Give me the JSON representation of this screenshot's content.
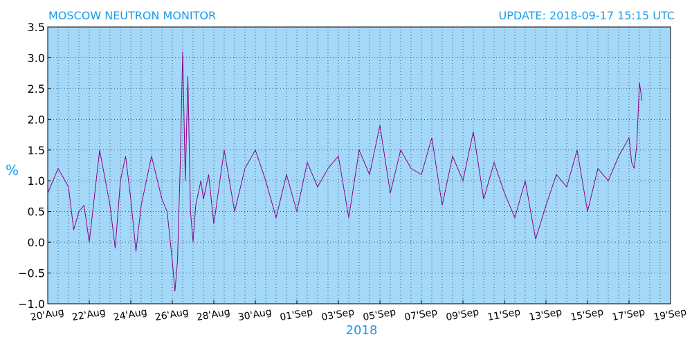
{
  "header": {
    "title": "MOSCOW NEUTRON MONITOR",
    "update": "UPDATE: 2018-09-17 15:15 UTC"
  },
  "colors": {
    "plot_background": "#a4d8f8",
    "line": "#8b008b",
    "accent_text": "#1a9be6"
  },
  "chart_data": {
    "type": "line",
    "title": "MOSCOW NEUTRON MONITOR",
    "xlabel": "2018",
    "ylabel": "%",
    "ylim": [
      -1.0,
      3.5
    ],
    "yticks": [
      -1.0,
      -0.5,
      0.0,
      0.5,
      1.0,
      1.5,
      2.0,
      2.5,
      3.0,
      3.5
    ],
    "ytick_labels": [
      "−1.0",
      "−0.5",
      "0.0",
      "0.5",
      "1.0",
      "1.5",
      "2.0",
      "2.5",
      "3.0",
      "3.5"
    ],
    "xlim": [
      "2018-08-20",
      "2018-09-19"
    ],
    "xtick_dates": [
      "2018-08-20",
      "2018-08-22",
      "2018-08-24",
      "2018-08-26",
      "2018-08-28",
      "2018-08-30",
      "2018-09-01",
      "2018-09-03",
      "2018-09-05",
      "2018-09-07",
      "2018-09-09",
      "2018-09-11",
      "2018-09-13",
      "2018-09-15",
      "2018-09-17",
      "2018-09-19"
    ],
    "xtick_labels": [
      "20'Aug",
      "22'Aug",
      "24'Aug",
      "26'Aug",
      "28'Aug",
      "30'Aug",
      "01'Sep",
      "03'Sep",
      "05'Sep",
      "07'Sep",
      "09'Sep",
      "11'Sep",
      "13'Sep",
      "15'Sep",
      "17'Sep",
      "19'Sep"
    ],
    "grid": true,
    "series": [
      {
        "x": [
          "2018-08-20",
          "2018-08-20T12:00",
          "2018-08-21",
          "2018-08-21T06:00",
          "2018-08-21T12:00",
          "2018-08-21T18:00",
          "2018-08-22",
          "2018-08-22T12:00",
          "2018-08-23",
          "2018-08-23T06:00",
          "2018-08-23T12:00",
          "2018-08-23T18:00",
          "2018-08-24",
          "2018-08-24T06:00",
          "2018-08-24T12:00",
          "2018-08-25",
          "2018-08-25T12:00",
          "2018-08-25T18:00",
          "2018-08-26",
          "2018-08-26T03:00",
          "2018-08-26T06:00",
          "2018-08-26T09:00",
          "2018-08-26T12:00",
          "2018-08-26T15:00",
          "2018-08-26T18:00",
          "2018-08-26T21:00",
          "2018-08-27",
          "2018-08-27T03:00",
          "2018-08-27T06:00",
          "2018-08-27T09:00",
          "2018-08-27T12:00",
          "2018-08-27T18:00",
          "2018-08-28",
          "2018-08-28T12:00",
          "2018-08-29",
          "2018-08-29T12:00",
          "2018-08-30",
          "2018-08-30T12:00",
          "2018-08-31",
          "2018-08-31T12:00",
          "2018-09-01",
          "2018-09-01T12:00",
          "2018-09-02",
          "2018-09-02T12:00",
          "2018-09-03",
          "2018-09-03T12:00",
          "2018-09-04",
          "2018-09-04T12:00",
          "2018-09-05",
          "2018-09-05T12:00",
          "2018-09-06",
          "2018-09-06T12:00",
          "2018-09-07",
          "2018-09-07T12:00",
          "2018-09-08",
          "2018-09-08T12:00",
          "2018-09-09",
          "2018-09-09T12:00",
          "2018-09-10",
          "2018-09-10T12:00",
          "2018-09-11",
          "2018-09-11T12:00",
          "2018-09-12",
          "2018-09-12T12:00",
          "2018-09-13",
          "2018-09-13T12:00",
          "2018-09-14",
          "2018-09-14T12:00",
          "2018-09-15",
          "2018-09-15T12:00",
          "2018-09-16",
          "2018-09-16T12:00",
          "2018-09-17",
          "2018-09-17T03:00",
          "2018-09-17T06:00",
          "2018-09-17T09:00",
          "2018-09-17T12:00",
          "2018-09-17T15:00"
        ],
        "values": [
          0.8,
          1.2,
          0.9,
          0.2,
          0.5,
          0.6,
          0.0,
          1.5,
          0.6,
          -0.1,
          1.0,
          1.4,
          0.7,
          -0.15,
          0.6,
          1.4,
          0.7,
          0.5,
          -0.3,
          -0.8,
          -0.3,
          1.2,
          3.1,
          1.0,
          2.7,
          0.5,
          0.0,
          0.6,
          0.8,
          1.0,
          0.7,
          1.1,
          0.3,
          1.5,
          0.5,
          1.2,
          1.5,
          1.0,
          0.4,
          1.1,
          0.5,
          1.3,
          0.9,
          1.2,
          1.4,
          0.4,
          1.5,
          1.1,
          1.9,
          0.8,
          1.5,
          1.2,
          1.1,
          1.7,
          0.6,
          1.4,
          1.0,
          1.8,
          0.7,
          1.3,
          0.8,
          0.4,
          1.0,
          0.05,
          0.6,
          1.1,
          0.9,
          1.5,
          0.5,
          1.2,
          1.0,
          1.4,
          1.7,
          1.3,
          1.2,
          1.6,
          2.6,
          2.3
        ]
      }
    ]
  }
}
